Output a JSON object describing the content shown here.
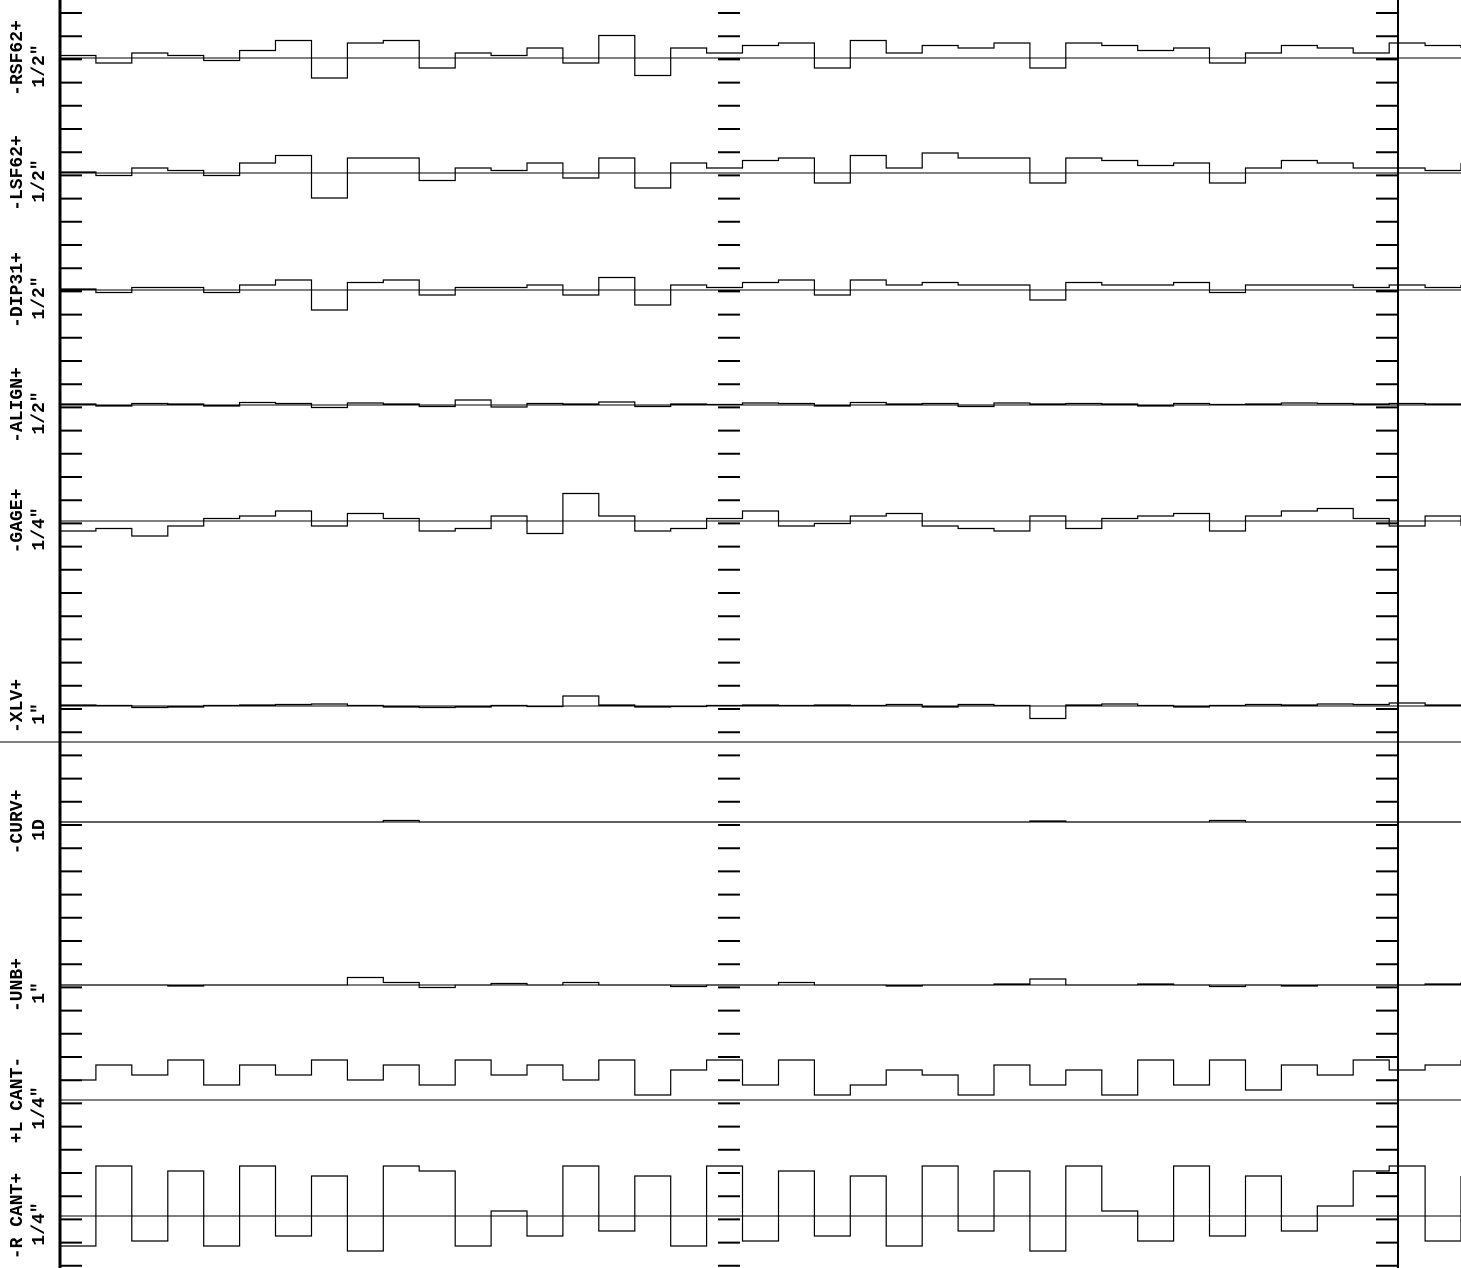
{
  "chart_data": {
    "type": "strip",
    "ylim": [
      -1,
      1
    ],
    "series": [
      {
        "name": "-RSF62+",
        "scale": "1/2\"",
        "color": "#000",
        "values": [
          0.05,
          -0.1,
          0.1,
          0.05,
          -0.05,
          0.15,
          0.35,
          -0.4,
          0.3,
          0.35,
          -0.2,
          0.1,
          0.05,
          0.2,
          -0.1,
          0.45,
          -0.35,
          0.2,
          0.1,
          0.25,
          0.3,
          -0.2,
          0.35,
          0.1,
          0.25,
          0.2,
          0.3,
          -0.2,
          0.3,
          0.25,
          0.15,
          0.2,
          -0.1,
          0.1,
          0.25,
          0.2,
          0.1,
          0.3,
          0.25,
          0.2
        ]
      },
      {
        "name": "-LSF62+",
        "scale": "1/2\"",
        "color": "#000",
        "values": [
          0.02,
          -0.05,
          0.1,
          0.05,
          -0.05,
          0.2,
          0.35,
          -0.5,
          0.3,
          0.3,
          -0.15,
          0.1,
          0.05,
          0.2,
          -0.1,
          0.3,
          -0.3,
          0.2,
          0.1,
          0.25,
          0.3,
          -0.2,
          0.35,
          0.1,
          0.4,
          0.3,
          0.3,
          -0.2,
          0.3,
          0.25,
          0.15,
          0.2,
          -0.2,
          0.1,
          0.25,
          0.2,
          0.1,
          0.1,
          0.05,
          0.2
        ]
      },
      {
        "name": "-DIP31+",
        "scale": "1/2\"",
        "color": "#000",
        "values": [
          0.02,
          -0.05,
          0.05,
          0.05,
          -0.05,
          0.1,
          0.2,
          -0.4,
          0.15,
          0.2,
          -0.1,
          0.05,
          0.05,
          0.1,
          -0.1,
          0.25,
          -0.3,
          0.1,
          0.05,
          0.15,
          0.2,
          -0.1,
          0.2,
          0.1,
          0.15,
          0.1,
          0.1,
          -0.2,
          0.15,
          0.1,
          0.1,
          0.15,
          -0.05,
          0.1,
          0.1,
          0.1,
          0.05,
          0.1,
          0.05,
          0.1
        ]
      },
      {
        "name": "-ALIGN+",
        "scale": "1/2\"",
        "color": "#000",
        "values": [
          0.02,
          -0.02,
          0.03,
          0.02,
          -0.02,
          0.05,
          0.03,
          -0.05,
          0.04,
          0.02,
          -0.03,
          0.1,
          -0.04,
          0.03,
          0.02,
          0.06,
          -0.03,
          0.02,
          0.01,
          0.04,
          0.03,
          -0.02,
          0.05,
          0.02,
          0.03,
          -0.03,
          0.04,
          0.02,
          0.03,
          0.02,
          -0.02,
          0.03,
          0.01,
          0.02,
          0.04,
          0.03,
          0.02,
          0.03,
          0.02,
          0.03
        ]
      },
      {
        "name": "-GAGE+",
        "scale": "1/4\"",
        "color": "#000",
        "values": [
          -0.2,
          -0.15,
          -0.3,
          -0.1,
          0.05,
          0.1,
          0.2,
          -0.1,
          0.15,
          0.05,
          -0.2,
          -0.15,
          0.1,
          -0.25,
          0.55,
          0.1,
          -0.2,
          -0.15,
          0.05,
          0.2,
          -0.1,
          -0.05,
          0.1,
          0.15,
          -0.1,
          -0.15,
          -0.2,
          0.1,
          -0.15,
          0.05,
          0.1,
          0.15,
          -0.2,
          0.1,
          0.2,
          0.25,
          0.05,
          -0.1,
          0.1,
          -0.1
        ]
      },
      {
        "name": "-XLV+",
        "scale": "1\"",
        "color": "#000",
        "values": [
          0.02,
          0.01,
          -0.03,
          -0.02,
          0.01,
          0.02,
          0.03,
          0.04,
          0.01,
          -0.02,
          -0.03,
          -0.02,
          0.01,
          -0.01,
          0.2,
          0.02,
          -0.02,
          -0.01,
          0.01,
          0.02,
          0.01,
          0.02,
          0.01,
          0.03,
          -0.02,
          0.03,
          0.01,
          -0.25,
          0.02,
          0.04,
          0.01,
          -0.02,
          0.01,
          0.03,
          0.02,
          0.04,
          0.03,
          0.06,
          0.02,
          0.01
        ]
      },
      {
        "name": "-CURV+",
        "scale": "1D",
        "color": "#000",
        "values": [
          0,
          0,
          0,
          0,
          0,
          0,
          0,
          0,
          0,
          0.03,
          0,
          0,
          0,
          0,
          0,
          0,
          0,
          0,
          0,
          0,
          0,
          0,
          0,
          0,
          0,
          0,
          0,
          0.02,
          0,
          0,
          0,
          0,
          0.03,
          0,
          0,
          0,
          0,
          0,
          0,
          0
        ]
      },
      {
        "name": "+L CANT-",
        "scale": "1/4\"",
        "color": "#000",
        "values": [
          0.4,
          0.7,
          0.5,
          0.8,
          0.3,
          0.7,
          0.5,
          0.8,
          0.4,
          0.7,
          0.3,
          0.8,
          0.5,
          0.7,
          0.4,
          0.8,
          0.1,
          0.6,
          0.8,
          0.3,
          0.8,
          0.1,
          0.3,
          0.6,
          0.5,
          0.1,
          0.7,
          0.3,
          0.6,
          0.1,
          0.8,
          0.3,
          0.8,
          0.2,
          0.7,
          0.5,
          0.8,
          0.6,
          0.7,
          0.8
        ]
      },
      {
        "name": "-UNB+",
        "scale": "1\"",
        "color": "#000",
        "values": [
          0,
          0,
          0,
          -0.02,
          0,
          0,
          0,
          0,
          0.15,
          0.05,
          -0.05,
          0,
          0.03,
          0,
          0.05,
          0,
          0,
          -0.03,
          0,
          0,
          0.05,
          0,
          0,
          -0.02,
          0,
          0,
          0.02,
          0.12,
          0,
          0,
          0.02,
          0,
          -0.03,
          0,
          -0.02,
          0,
          0,
          0,
          0.02,
          0.05
        ]
      },
      {
        "name": "-R CANT+",
        "scale": "1/4\"",
        "color": "#000",
        "values": [
          -0.6,
          1,
          -0.5,
          0.9,
          -0.6,
          1,
          -0.4,
          0.8,
          -0.7,
          1,
          0.9,
          -0.6,
          0.1,
          -0.4,
          1,
          -0.3,
          0.8,
          -0.6,
          1,
          -0.5,
          0.9,
          -0.4,
          0.8,
          -0.6,
          1,
          -0.3,
          0.9,
          -0.7,
          1,
          0.1,
          -0.5,
          1,
          -0.4,
          0.8,
          -0.3,
          0.2,
          0.9,
          1,
          -0.5,
          0.8
        ]
      }
    ]
  }
}
